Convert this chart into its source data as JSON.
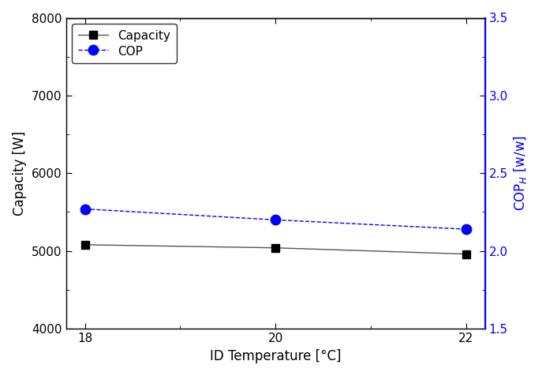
{
  "x": [
    18,
    20,
    22
  ],
  "capacity": [
    5080,
    5040,
    4960
  ],
  "cop": [
    2.27,
    2.2,
    2.14
  ],
  "capacity_color": "#555555",
  "cop_color": "#0000FF",
  "xlabel": "ID Temperature [°C]",
  "ylabel_left": "Capacity [W]",
  "ylabel_right": "COP$_H$ [w/w]",
  "ylim_left": [
    4000,
    8000
  ],
  "ylim_right": [
    1.5,
    3.5
  ],
  "yticks_left": [
    4000,
    5000,
    6000,
    7000,
    8000
  ],
  "yticks_right": [
    1.5,
    2.0,
    2.5,
    3.0,
    3.5
  ],
  "xticks": [
    18,
    20,
    22
  ],
  "legend_labels": [
    "Capacity",
    "COP"
  ],
  "figsize": [
    6.87,
    4.76
  ],
  "dpi": 100
}
